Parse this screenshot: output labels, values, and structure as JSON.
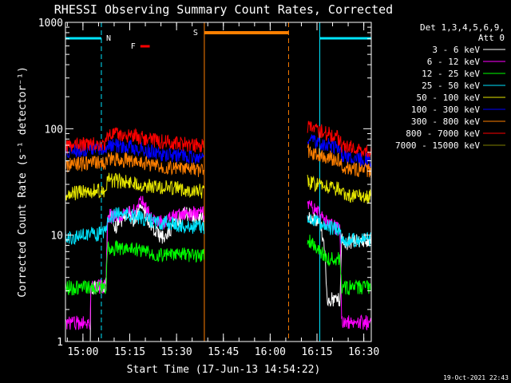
{
  "chart_data": {
    "type": "line",
    "title": "RHESSI Observing Summary Count Rates, Corrected",
    "xlabel": "Start Time (17-Jun-13 14:54:22)",
    "ylabel": "Corrected Count Rate (s⁻¹ detector⁻¹)",
    "yscale": "log",
    "ylim": [
      1,
      1000
    ],
    "xlim_minutes": [
      0,
      98
    ],
    "x_ticks": [
      {
        "label": "15:00",
        "minute": 5.6
      },
      {
        "label": "15:15",
        "minute": 20.6
      },
      {
        "label": "15:30",
        "minute": 35.6
      },
      {
        "label": "15:45",
        "minute": 50.6
      },
      {
        "label": "16:00",
        "minute": 65.6
      },
      {
        "label": "16:15",
        "minute": 80.6
      },
      {
        "label": "16:30",
        "minute": 95.6
      }
    ],
    "y_ticks": [
      {
        "label": "1",
        "value": 1
      },
      {
        "label": "10",
        "value": 10
      },
      {
        "label": "100",
        "value": 100
      },
      {
        "label": "1000",
        "value": 1000
      }
    ],
    "legend_header": [
      "Det 1,3,4,5,6,9,",
      "Att 0"
    ],
    "timestamp": "19-Oct-2021 22:43",
    "flag_labels": {
      "night": "N",
      "flare": "F",
      "saa": "S"
    },
    "flag_colors": {
      "night": "#00e5ff",
      "flare": "#ff0000",
      "saa": "#ff7f00"
    },
    "night_intervals": [
      [
        0,
        11.5
      ],
      [
        81.5,
        98
      ]
    ],
    "saa_interval": [
      44.5,
      71.5
    ],
    "flare_marker": [
      24,
      27
    ],
    "gap_interval": [
      44.5,
      77.5
    ],
    "series": [
      {
        "name": "3 - 6 keV",
        "color": "#ffffff",
        "points": [
          [
            0,
            1.0
          ],
          [
            8,
            1.0
          ],
          [
            8.1,
            3.3
          ],
          [
            13,
            3.3
          ],
          [
            13.5,
            15
          ],
          [
            15,
            15
          ],
          [
            16,
            12
          ],
          [
            18,
            14
          ],
          [
            20,
            17
          ],
          [
            22,
            13
          ],
          [
            24,
            20
          ],
          [
            26,
            15
          ],
          [
            28,
            11
          ],
          [
            30,
            10
          ],
          [
            32,
            9
          ],
          [
            34,
            12
          ],
          [
            36,
            14
          ],
          [
            38,
            16
          ],
          [
            42,
            15
          ],
          [
            44,
            15
          ],
          [
            77.5,
            15
          ],
          [
            80,
            14
          ],
          [
            82,
            12
          ],
          [
            83,
            7.5
          ],
          [
            84,
            2.5
          ],
          [
            88,
            2.5
          ],
          [
            88.5,
            10
          ],
          [
            90,
            8
          ],
          [
            92,
            9
          ],
          [
            96,
            9
          ],
          [
            98,
            9
          ]
        ]
      },
      {
        "name": "6 - 12 keV",
        "color": "#ff00ff",
        "points": [
          [
            0,
            1.5
          ],
          [
            8,
            1.5
          ],
          [
            8.1,
            3.3
          ],
          [
            13,
            3.3
          ],
          [
            13.5,
            15
          ],
          [
            16,
            15
          ],
          [
            18,
            15
          ],
          [
            20,
            16
          ],
          [
            22,
            17
          ],
          [
            24,
            22
          ],
          [
            26,
            17
          ],
          [
            28,
            14
          ],
          [
            30,
            14
          ],
          [
            32,
            13
          ],
          [
            34,
            15
          ],
          [
            36,
            15
          ],
          [
            38,
            16
          ],
          [
            42,
            16
          ],
          [
            44,
            16
          ],
          [
            77.5,
            18
          ],
          [
            80,
            18
          ],
          [
            82,
            15
          ],
          [
            84,
            13
          ],
          [
            86,
            12
          ],
          [
            88,
            11
          ],
          [
            88.5,
            1.5
          ],
          [
            98,
            1.5
          ]
        ]
      },
      {
        "name": "12 - 25 keV",
        "color": "#00ff00",
        "points": [
          [
            0,
            3.2
          ],
          [
            8,
            3.2
          ],
          [
            8.1,
            3.2
          ],
          [
            13,
            3.2
          ],
          [
            13.5,
            7.5
          ],
          [
            18,
            7.5
          ],
          [
            22,
            7.5
          ],
          [
            26,
            7
          ],
          [
            30,
            6.5
          ],
          [
            34,
            6.5
          ],
          [
            38,
            6.5
          ],
          [
            42,
            6.5
          ],
          [
            44,
            6.5
          ],
          [
            77.5,
            9
          ],
          [
            80,
            8
          ],
          [
            82,
            7
          ],
          [
            84,
            6
          ],
          [
            88,
            6
          ],
          [
            88.5,
            3.2
          ],
          [
            98,
            3.2
          ]
        ]
      },
      {
        "name": "25 - 50 keV",
        "color": "#00e5ff",
        "points": [
          [
            0,
            9.5
          ],
          [
            3,
            9.5
          ],
          [
            6,
            10
          ],
          [
            8,
            10.5
          ],
          [
            10,
            10
          ],
          [
            13,
            11
          ],
          [
            13.5,
            15
          ],
          [
            18,
            16
          ],
          [
            22,
            15
          ],
          [
            26,
            14
          ],
          [
            30,
            13
          ],
          [
            34,
            13
          ],
          [
            38,
            12
          ],
          [
            42,
            12
          ],
          [
            44,
            12
          ],
          [
            77.5,
            15
          ],
          [
            80,
            14
          ],
          [
            82,
            13
          ],
          [
            84,
            12
          ],
          [
            88,
            11
          ],
          [
            88.5,
            9
          ],
          [
            92,
            9
          ],
          [
            98,
            9
          ]
        ]
      },
      {
        "name": "50 - 100 keV",
        "color": "#e6e600",
        "points": [
          [
            0,
            24
          ],
          [
            4,
            25
          ],
          [
            8,
            26
          ],
          [
            8.1,
            26
          ],
          [
            13,
            26
          ],
          [
            13.5,
            33
          ],
          [
            18,
            32
          ],
          [
            22,
            31
          ],
          [
            26,
            29
          ],
          [
            30,
            28
          ],
          [
            34,
            28
          ],
          [
            38,
            27
          ],
          [
            42,
            26
          ],
          [
            44,
            26
          ],
          [
            77.5,
            32
          ],
          [
            80,
            30
          ],
          [
            84,
            28
          ],
          [
            88,
            27
          ],
          [
            88.5,
            24
          ],
          [
            92,
            23
          ],
          [
            98,
            23
          ]
        ]
      },
      {
        "name": "100 - 300 keV",
        "color": "#0000ff",
        "points": [
          [
            0,
            60
          ],
          [
            4,
            62
          ],
          [
            8,
            65
          ],
          [
            8.1,
            65
          ],
          [
            13,
            65
          ],
          [
            13.5,
            70
          ],
          [
            18,
            69
          ],
          [
            22,
            66
          ],
          [
            26,
            62
          ],
          [
            30,
            58
          ],
          [
            34,
            56
          ],
          [
            38,
            55
          ],
          [
            42,
            54
          ],
          [
            44,
            54
          ],
          [
            77.5,
            80
          ],
          [
            80,
            75
          ],
          [
            84,
            70
          ],
          [
            88,
            65
          ],
          [
            88.5,
            55
          ],
          [
            92,
            52
          ],
          [
            98,
            50
          ]
        ]
      },
      {
        "name": "300 - 800 keV",
        "color": "#ff7f00",
        "points": [
          [
            0,
            45
          ],
          [
            4,
            46
          ],
          [
            8,
            48
          ],
          [
            8.1,
            48
          ],
          [
            13,
            48
          ],
          [
            13.5,
            52
          ],
          [
            18,
            51
          ],
          [
            22,
            50
          ],
          [
            26,
            47
          ],
          [
            30,
            45
          ],
          [
            34,
            43
          ],
          [
            38,
            42
          ],
          [
            42,
            41
          ],
          [
            44,
            41
          ],
          [
            77.5,
            62
          ],
          [
            80,
            58
          ],
          [
            84,
            54
          ],
          [
            88,
            50
          ],
          [
            88.5,
            44
          ],
          [
            92,
            42
          ],
          [
            98,
            40
          ]
        ]
      },
      {
        "name": "800 - 7000 keV",
        "color": "#ff0000",
        "points": [
          [
            0,
            68
          ],
          [
            4,
            70
          ],
          [
            8,
            72
          ],
          [
            8.1,
            72
          ],
          [
            13,
            72
          ],
          [
            13.5,
            90
          ],
          [
            18,
            88
          ],
          [
            22,
            85
          ],
          [
            26,
            80
          ],
          [
            30,
            76
          ],
          [
            34,
            74
          ],
          [
            38,
            72
          ],
          [
            42,
            70
          ],
          [
            44,
            70
          ],
          [
            77.5,
            105
          ],
          [
            80,
            98
          ],
          [
            84,
            90
          ],
          [
            88,
            80
          ],
          [
            88.5,
            70
          ],
          [
            92,
            66
          ],
          [
            98,
            62
          ]
        ]
      },
      {
        "name": "7000 - 15000 keV",
        "color": "#808000",
        "points": [
          [
            0,
            1.0
          ],
          [
            44,
            1.0
          ],
          [
            77.5,
            1.0
          ],
          [
            98,
            1.0
          ]
        ]
      }
    ]
  }
}
